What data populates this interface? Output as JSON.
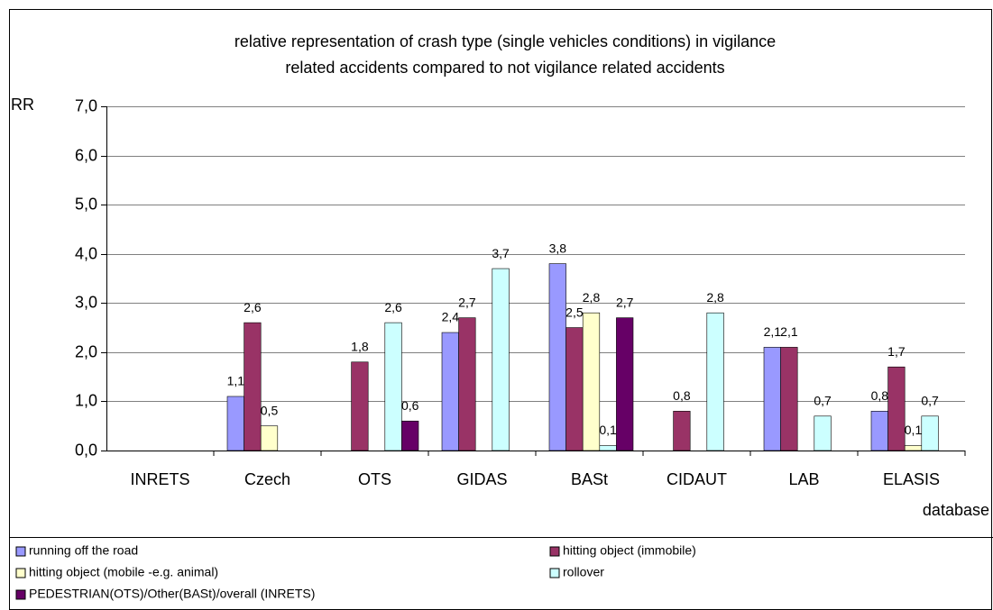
{
  "chart_data": {
    "type": "bar",
    "title": [
      "relative representation of crash type (single vehicles conditions) in vigilance",
      "related accidents compared to not vigilance related accidents"
    ],
    "y_label": "RR",
    "x_label": "database",
    "categories": [
      "INRETS",
      "Czech",
      "OTS",
      "GIDAS",
      "BASt",
      "CIDAUT",
      "LAB",
      "ELASIS"
    ],
    "series": [
      {
        "name": "running off the road",
        "color": "#9999ff",
        "values": [
          null,
          1.1,
          null,
          2.4,
          3.8,
          null,
          2.1,
          0.8
        ],
        "value_labels": [
          null,
          "1,1",
          null,
          "2,4",
          "3,8",
          null,
          "2,1",
          "0,8"
        ]
      },
      {
        "name": "hitting object (immobile)",
        "color": "#993366",
        "values": [
          null,
          2.6,
          1.8,
          2.7,
          2.5,
          0.8,
          2.1,
          1.7
        ],
        "value_labels": [
          null,
          "2,6",
          "1,8",
          "2,7",
          "2,5",
          "0,8",
          "2,1",
          "1,7"
        ]
      },
      {
        "name": "hitting object (mobile -e.g. animal)",
        "color": "#ffffcc",
        "values": [
          null,
          0.5,
          null,
          null,
          2.8,
          null,
          null,
          0.1
        ],
        "value_labels": [
          null,
          "0,5",
          null,
          null,
          "2,8",
          null,
          null,
          "0,1"
        ]
      },
      {
        "name": "rollover",
        "color": "#ccffff",
        "values": [
          null,
          null,
          2.6,
          3.7,
          0.1,
          2.8,
          0.7,
          0.7
        ],
        "value_labels": [
          null,
          null,
          "2,6",
          "3,7",
          "0,1",
          "2,8",
          "0,7",
          "0,7"
        ]
      },
      {
        "name": "PEDESTRIAN(OTS)/Other(BASt)/overall (INRETS)",
        "color": "#660066",
        "values": [
          null,
          null,
          0.6,
          null,
          2.7,
          null,
          null,
          null
        ],
        "value_labels": [
          null,
          null,
          "0,6",
          null,
          "2,7",
          null,
          null,
          null
        ]
      }
    ],
    "ylim": [
      0,
      7
    ],
    "yticks": [
      {
        "value": 0,
        "label": "0,0"
      },
      {
        "value": 1,
        "label": "1,0"
      },
      {
        "value": 2,
        "label": "2,0"
      },
      {
        "value": 3,
        "label": "3,0"
      },
      {
        "value": 4,
        "label": "4,0"
      },
      {
        "value": 5,
        "label": "5,0"
      },
      {
        "value": 6,
        "label": "6,0"
      },
      {
        "value": 7,
        "label": "7,0"
      }
    ],
    "grid": true,
    "legend": "bottom"
  }
}
